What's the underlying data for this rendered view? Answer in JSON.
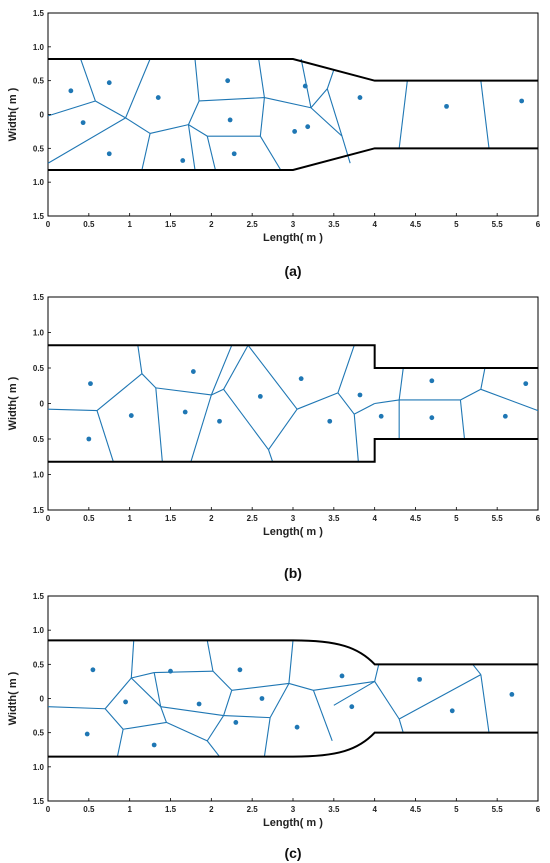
{
  "panels": [
    {
      "label": "(a)",
      "xlabel": "Length( m )",
      "ylabel": "Width( m )",
      "shape": "taper",
      "x_ticks": [
        "0",
        "0.5",
        "1",
        "1.5",
        "2",
        "2.5",
        "3",
        "3.5",
        "4",
        "4.5",
        "5",
        "5.5",
        "6"
      ],
      "y_ticks": [
        "1.5",
        "1.0",
        "0.5",
        "0",
        "0.5",
        "1.0",
        "1.5"
      ],
      "boundary_points": [
        [
          0,
          0.82
        ],
        [
          3,
          0.82
        ],
        [
          4,
          0.5
        ],
        [
          6,
          0.5
        ],
        [
          6,
          -0.5
        ],
        [
          4,
          -0.5
        ],
        [
          3,
          -0.82
        ],
        [
          0,
          -0.82
        ]
      ],
      "seed_points": [
        [
          0.28,
          0.35
        ],
        [
          0.75,
          0.47
        ],
        [
          0.43,
          -0.12
        ],
        [
          0.75,
          -0.58
        ],
        [
          1.35,
          0.25
        ],
        [
          1.65,
          -0.68
        ],
        [
          2.2,
          0.5
        ],
        [
          2.23,
          -0.08
        ],
        [
          2.28,
          -0.58
        ],
        [
          3.15,
          0.42
        ],
        [
          3.02,
          -0.25
        ],
        [
          3.18,
          -0.18
        ],
        [
          3.82,
          0.25
        ],
        [
          4.88,
          0.12
        ],
        [
          5.8,
          0.2
        ]
      ],
      "cell_edges": [
        [
          [
            0,
            -0.02
          ],
          [
            0.58,
            0.2
          ]
        ],
        [
          [
            0.58,
            0.2
          ],
          [
            0.4,
            0.82
          ]
        ],
        [
          [
            0.58,
            0.2
          ],
          [
            0.95,
            -0.05
          ]
        ],
        [
          [
            0.95,
            -0.05
          ],
          [
            1.25,
            0.82
          ]
        ],
        [
          [
            0.95,
            -0.05
          ],
          [
            0,
            -0.72
          ]
        ],
        [
          [
            0.95,
            -0.05
          ],
          [
            1.25,
            -0.28
          ]
        ],
        [
          [
            1.25,
            -0.28
          ],
          [
            1.15,
            -0.82
          ]
        ],
        [
          [
            1.25,
            -0.28
          ],
          [
            1.72,
            -0.15
          ]
        ],
        [
          [
            1.72,
            -0.15
          ],
          [
            1.8,
            -0.82
          ]
        ],
        [
          [
            1.72,
            -0.15
          ],
          [
            1.85,
            0.2
          ]
        ],
        [
          [
            1.85,
            0.2
          ],
          [
            1.8,
            0.82
          ]
        ],
        [
          [
            1.85,
            0.2
          ],
          [
            2.65,
            0.25
          ]
        ],
        [
          [
            2.65,
            0.25
          ],
          [
            2.58,
            0.82
          ]
        ],
        [
          [
            2.65,
            0.25
          ],
          [
            2.6,
            -0.32
          ]
        ],
        [
          [
            2.6,
            -0.32
          ],
          [
            1.95,
            -0.32
          ]
        ],
        [
          [
            1.95,
            -0.32
          ],
          [
            1.72,
            -0.15
          ]
        ],
        [
          [
            1.95,
            -0.32
          ],
          [
            2.05,
            -0.82
          ]
        ],
        [
          [
            2.6,
            -0.32
          ],
          [
            2.85,
            -0.82
          ]
        ],
        [
          [
            2.65,
            0.25
          ],
          [
            3.22,
            0.1
          ]
        ],
        [
          [
            3.22,
            0.1
          ],
          [
            3.1,
            0.82
          ]
        ],
        [
          [
            3.22,
            0.1
          ],
          [
            3.6,
            -0.32
          ]
        ],
        [
          [
            3.6,
            -0.32
          ],
          [
            3.7,
            -0.72
          ]
        ],
        [
          [
            3.22,
            0.1
          ],
          [
            3.42,
            0.38
          ]
        ],
        [
          [
            3.42,
            0.38
          ],
          [
            3.5,
            0.66
          ]
        ],
        [
          [
            3.42,
            0.38
          ],
          [
            3.6,
            -0.32
          ]
        ],
        [
          [
            4.4,
            0.5
          ],
          [
            4.3,
            -0.5
          ]
        ],
        [
          [
            5.3,
            0.5
          ],
          [
            5.4,
            -0.5
          ]
        ]
      ]
    },
    {
      "label": "(b)",
      "xlabel": "Length( m )",
      "ylabel": "Width( m )",
      "shape": "step",
      "x_ticks": [
        "0",
        "0.5",
        "1",
        "1.5",
        "2",
        "2.5",
        "3",
        "3.5",
        "4",
        "4.5",
        "5",
        "5.5",
        "6"
      ],
      "y_ticks": [
        "1.5",
        "1.0",
        "0.5",
        "0",
        "0.5",
        "1.0",
        "1.5"
      ],
      "boundary_points": [
        [
          0,
          0.82
        ],
        [
          4,
          0.82
        ],
        [
          4,
          0.5
        ],
        [
          6,
          0.5
        ],
        [
          6,
          -0.5
        ],
        [
          4,
          -0.5
        ],
        [
          4,
          -0.82
        ],
        [
          0,
          -0.82
        ]
      ],
      "seed_points": [
        [
          0.52,
          0.28
        ],
        [
          0.5,
          -0.5
        ],
        [
          1.02,
          -0.17
        ],
        [
          1.78,
          0.45
        ],
        [
          1.68,
          -0.12
        ],
        [
          2.1,
          -0.25
        ],
        [
          2.6,
          0.1
        ],
        [
          3.1,
          0.35
        ],
        [
          3.45,
          -0.25
        ],
        [
          3.82,
          0.12
        ],
        [
          4.08,
          -0.18
        ],
        [
          4.7,
          0.32
        ],
        [
          4.7,
          -0.2
        ],
        [
          5.6,
          -0.18
        ],
        [
          5.85,
          0.28
        ]
      ],
      "cell_edges": [
        [
          [
            0,
            -0.08
          ],
          [
            0.6,
            -0.1
          ]
        ],
        [
          [
            0.6,
            -0.1
          ],
          [
            0.8,
            -0.82
          ]
        ],
        [
          [
            0.6,
            -0.1
          ],
          [
            1.15,
            0.42
          ]
        ],
        [
          [
            1.15,
            0.42
          ],
          [
            1.1,
            0.82
          ]
        ],
        [
          [
            1.15,
            0.42
          ],
          [
            1.32,
            0.22
          ]
        ],
        [
          [
            1.32,
            0.22
          ],
          [
            1.4,
            -0.82
          ]
        ],
        [
          [
            1.32,
            0.22
          ],
          [
            2.0,
            0.12
          ]
        ],
        [
          [
            2.0,
            0.12
          ],
          [
            1.75,
            -0.82
          ]
        ],
        [
          [
            2.0,
            0.12
          ],
          [
            2.25,
            0.82
          ]
        ],
        [
          [
            2.0,
            0.12
          ],
          [
            2.15,
            0.2
          ]
        ],
        [
          [
            2.15,
            0.2
          ],
          [
            2.7,
            -0.65
          ]
        ],
        [
          [
            2.7,
            -0.65
          ],
          [
            2.75,
            -0.82
          ]
        ],
        [
          [
            2.15,
            0.2
          ],
          [
            2.45,
            0.82
          ]
        ],
        [
          [
            2.45,
            0.82
          ],
          [
            3.05,
            -0.08
          ]
        ],
        [
          [
            3.05,
            -0.08
          ],
          [
            2.7,
            -0.65
          ]
        ],
        [
          [
            3.05,
            -0.08
          ],
          [
            3.55,
            0.15
          ]
        ],
        [
          [
            3.55,
            0.15
          ],
          [
            3.75,
            0.82
          ]
        ],
        [
          [
            3.55,
            0.15
          ],
          [
            3.75,
            -0.15
          ]
        ],
        [
          [
            3.75,
            -0.15
          ],
          [
            3.8,
            -0.82
          ]
        ],
        [
          [
            3.75,
            -0.15
          ],
          [
            4.0,
            0.0
          ]
        ],
        [
          [
            4.0,
            0.0
          ],
          [
            4.3,
            0.05
          ]
        ],
        [
          [
            4.3,
            0.05
          ],
          [
            4.3,
            -0.5
          ]
        ],
        [
          [
            4.3,
            0.05
          ],
          [
            4.35,
            0.5
          ]
        ],
        [
          [
            4.3,
            0.05
          ],
          [
            5.05,
            0.05
          ]
        ],
        [
          [
            5.05,
            0.05
          ],
          [
            5.1,
            -0.5
          ]
        ],
        [
          [
            5.05,
            0.05
          ],
          [
            5.3,
            0.2
          ]
        ],
        [
          [
            5.3,
            0.2
          ],
          [
            5.35,
            0.5
          ]
        ],
        [
          [
            5.3,
            0.2
          ],
          [
            6,
            -0.1
          ]
        ]
      ]
    },
    {
      "label": "(c)",
      "xlabel": "Length( m )",
      "ylabel": "Width( m )",
      "shape": "curve",
      "x_ticks": [
        "0",
        "0.5",
        "1",
        "1.5",
        "2",
        "2.5",
        "3",
        "3.5",
        "4",
        "4.5",
        "5",
        "5.5",
        "6"
      ],
      "y_ticks": [
        "1.5",
        "1.0",
        "0.5",
        "0",
        "0.5",
        "1.0",
        "1.5"
      ],
      "boundary_points": [
        [
          0,
          0.85
        ],
        [
          3,
          0.85
        ],
        [
          4,
          0.5
        ],
        [
          6,
          0.5
        ],
        [
          6,
          -0.5
        ],
        [
          4,
          -0.5
        ],
        [
          3,
          -0.85
        ],
        [
          0,
          -0.85
        ]
      ],
      "seed_points": [
        [
          0.55,
          0.42
        ],
        [
          0.48,
          -0.52
        ],
        [
          0.95,
          -0.05
        ],
        [
          1.3,
          -0.68
        ],
        [
          1.5,
          0.4
        ],
        [
          1.85,
          -0.08
        ],
        [
          2.35,
          0.42
        ],
        [
          2.3,
          -0.35
        ],
        [
          2.62,
          0.0
        ],
        [
          3.05,
          -0.42
        ],
        [
          3.6,
          0.33
        ],
        [
          3.72,
          -0.12
        ],
        [
          4.55,
          0.28
        ],
        [
          4.95,
          -0.18
        ],
        [
          5.68,
          0.06
        ]
      ],
      "cell_edges": [
        [
          [
            0,
            -0.12
          ],
          [
            0.7,
            -0.15
          ]
        ],
        [
          [
            0.7,
            -0.15
          ],
          [
            1.02,
            0.3
          ]
        ],
        [
          [
            1.02,
            0.3
          ],
          [
            1.05,
            0.85
          ]
        ],
        [
          [
            0.7,
            -0.15
          ],
          [
            0.92,
            -0.45
          ]
        ],
        [
          [
            0.92,
            -0.45
          ],
          [
            0.85,
            -0.85
          ]
        ],
        [
          [
            0.92,
            -0.45
          ],
          [
            1.45,
            -0.35
          ]
        ],
        [
          [
            1.45,
            -0.35
          ],
          [
            1.38,
            -0.12
          ]
        ],
        [
          [
            1.38,
            -0.12
          ],
          [
            1.02,
            0.3
          ]
        ],
        [
          [
            1.02,
            0.3
          ],
          [
            1.3,
            0.38
          ]
        ],
        [
          [
            1.3,
            0.38
          ],
          [
            1.38,
            -0.12
          ]
        ],
        [
          [
            1.3,
            0.38
          ],
          [
            2.02,
            0.4
          ]
        ],
        [
          [
            2.02,
            0.4
          ],
          [
            1.95,
            0.85
          ]
        ],
        [
          [
            2.02,
            0.4
          ],
          [
            2.25,
            0.12
          ]
        ],
        [
          [
            2.25,
            0.12
          ],
          [
            2.95,
            0.22
          ]
        ],
        [
          [
            2.95,
            0.22
          ],
          [
            3.0,
            0.85
          ]
        ],
        [
          [
            2.25,
            0.12
          ],
          [
            2.15,
            -0.25
          ]
        ],
        [
          [
            2.15,
            -0.25
          ],
          [
            1.38,
            -0.12
          ]
        ],
        [
          [
            2.15,
            -0.25
          ],
          [
            1.95,
            -0.62
          ]
        ],
        [
          [
            1.95,
            -0.62
          ],
          [
            1.45,
            -0.35
          ]
        ],
        [
          [
            1.95,
            -0.62
          ],
          [
            2.1,
            -0.85
          ]
        ],
        [
          [
            2.15,
            -0.25
          ],
          [
            2.72,
            -0.28
          ]
        ],
        [
          [
            2.72,
            -0.28
          ],
          [
            2.95,
            0.22
          ]
        ],
        [
          [
            2.72,
            -0.28
          ],
          [
            2.65,
            -0.85
          ]
        ],
        [
          [
            2.95,
            0.22
          ],
          [
            3.25,
            0.12
          ]
        ],
        [
          [
            3.25,
            0.12
          ],
          [
            3.48,
            -0.62
          ]
        ],
        [
          [
            3.25,
            0.12
          ],
          [
            4.0,
            0.25
          ]
        ],
        [
          [
            4.0,
            0.25
          ],
          [
            4.05,
            0.5
          ]
        ],
        [
          [
            4.0,
            0.25
          ],
          [
            4.3,
            -0.3
          ]
        ],
        [
          [
            4.3,
            -0.3
          ],
          [
            4.35,
            -0.5
          ]
        ],
        [
          [
            4.3,
            -0.3
          ],
          [
            5.3,
            0.35
          ]
        ],
        [
          [
            5.3,
            0.35
          ],
          [
            5.4,
            -0.5
          ]
        ],
        [
          [
            5.3,
            0.35
          ],
          [
            5.2,
            0.5
          ]
        ],
        [
          [
            4.0,
            0.25
          ],
          [
            3.5,
            -0.1
          ]
        ]
      ]
    }
  ]
}
